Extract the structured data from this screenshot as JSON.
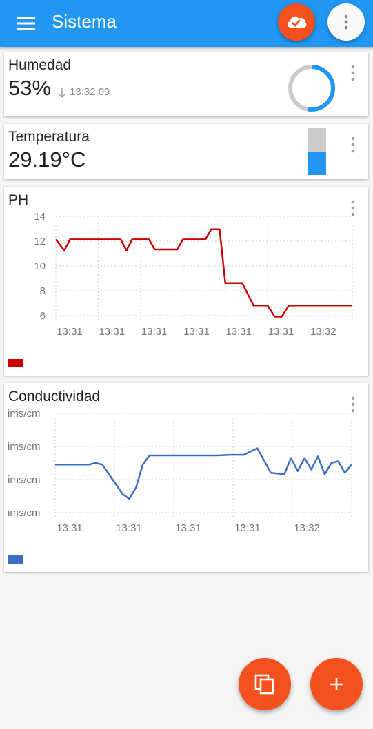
{
  "app": {
    "title": "Sistema"
  },
  "colors": {
    "appbar": "#2196f3",
    "accent": "#f4511e",
    "ph_line": "#cc0000",
    "cond_line": "#3a6fc4",
    "gauge": "#2196f3",
    "gauge_track": "#cccccc"
  },
  "humidity": {
    "title": "Humedad",
    "value": "53%",
    "timestamp": "13:32:09",
    "fill_fraction": 0.53
  },
  "temperature": {
    "title": "Temperatura",
    "value": "29.19°C",
    "fill_fraction": 0.5
  },
  "ph": {
    "title": "PH",
    "chart_data": {
      "type": "line",
      "title": "PH",
      "yticks": [
        "14",
        "12",
        "10",
        "8",
        "6"
      ],
      "ylim": [
        5.6,
        14.4
      ],
      "xticks": [
        "13:31",
        "13:31",
        "13:31",
        "13:31",
        "13:31",
        "13:31",
        "13:32"
      ],
      "x": [
        0,
        0.6,
        1,
        1.4,
        2,
        4.6,
        5,
        5.4,
        6,
        6.6,
        7,
        8,
        8.6,
        9,
        10,
        10.6,
        11,
        11.6,
        12,
        12.8,
        13.2,
        14,
        14.4,
        15,
        15.5,
        16,
        16.5,
        17,
        18,
        19,
        20,
        21
      ],
      "y": [
        12.9,
        11.9,
        12.9,
        12.9,
        12.9,
        12.9,
        11.9,
        12.9,
        12.9,
        12.9,
        12.0,
        12.0,
        12.0,
        12.9,
        12.9,
        12.9,
        13.8,
        13.8,
        9.0,
        9.0,
        9.0,
        7.0,
        7.0,
        7.0,
        6.0,
        6.0,
        7.0,
        7.0,
        7.0,
        7.0,
        7.0,
        7.0
      ],
      "series": [
        {
          "name": "PH"
        }
      ]
    }
  },
  "conductivity": {
    "title": "Conductividad",
    "chart_data": {
      "type": "line",
      "title": "Conductividad",
      "yticks": [
        "ims/cm",
        "ims/cm",
        "ims/cm",
        "ims/cm"
      ],
      "ylim": [
        0,
        3
      ],
      "xticks": [
        "13:31",
        "13:31",
        "13:31",
        "13:31",
        "13:32"
      ],
      "x": [
        0,
        1,
        2,
        2.5,
        3,
        3.5,
        4,
        4.5,
        5,
        5.5,
        6,
        6.5,
        7,
        7.5,
        8,
        8.5,
        9,
        10,
        11,
        12,
        13,
        14,
        15,
        16,
        17,
        17.5,
        18,
        18.5,
        19,
        19.5,
        20,
        20.5,
        21,
        21.5,
        22
      ],
      "y": [
        1.6,
        1.6,
        1.6,
        1.6,
        1.65,
        1.6,
        1.3,
        1.0,
        0.7,
        0.55,
        0.9,
        1.6,
        1.88,
        1.88,
        1.88,
        1.88,
        1.88,
        1.88,
        1.88,
        1.88,
        1.9,
        1.9,
        2.1,
        1.35,
        1.3,
        1.8,
        1.4,
        1.8,
        1.45,
        1.85,
        1.3,
        1.65,
        1.7,
        1.35,
        1.6
      ],
      "series": [
        {
          "name": "Conductividad"
        }
      ]
    }
  }
}
